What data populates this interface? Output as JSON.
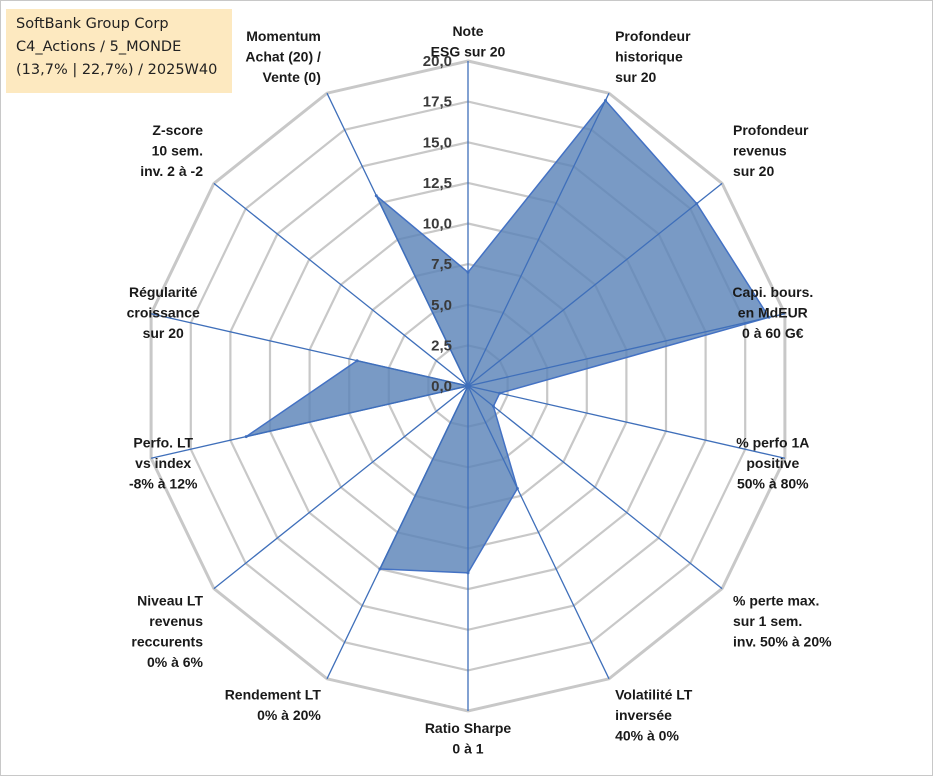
{
  "title_box": {
    "lines": [
      "SoftBank Group Corp",
      "C4_Actions / 5_MONDE",
      "(13,7% | 22,7%) / 2025W40"
    ]
  },
  "colors": {
    "grid": "#c8c8c8",
    "spoke": "#3f6fba",
    "series_fill": "#5b84b8",
    "series_stroke": "#4472c4",
    "title_box_bg": "#fde9c0"
  },
  "chart_data": {
    "type": "radar",
    "title": "",
    "rmin": 0,
    "rmax": 20,
    "tick_step": 2.5,
    "tick_labels": [
      "0,0",
      "2,5",
      "5,0",
      "7,5",
      "10,0",
      "12,5",
      "15,0",
      "17,5",
      "20,0"
    ],
    "grid": true,
    "legend": "none",
    "axes": [
      {
        "label_lines": [
          "Note",
          "ESG sur 20"
        ]
      },
      {
        "label_lines": [
          "Profondeur",
          "historique",
          "sur 20"
        ]
      },
      {
        "label_lines": [
          "Profondeur",
          "revenus",
          "sur 20"
        ]
      },
      {
        "label_lines": [
          "Capi. bours.",
          "en MdEUR",
          "0 à 60 G€"
        ]
      },
      {
        "label_lines": [
          "% perfo 1A",
          "positive",
          "50% à 80%"
        ]
      },
      {
        "label_lines": [
          "% perte max.",
          "sur 1 sem.",
          "inv. 50% à 20%"
        ]
      },
      {
        "label_lines": [
          "Volatilité LT",
          "inversée",
          "40% à 0%"
        ]
      },
      {
        "label_lines": [
          "Ratio Sharpe",
          "0 à 1"
        ]
      },
      {
        "label_lines": [
          "Rendement LT",
          "0% à 20%"
        ]
      },
      {
        "label_lines": [
          "Niveau LT",
          "revenus",
          "reccurents",
          "0% à 6%"
        ]
      },
      {
        "label_lines": [
          "Perfo. LT",
          "vs index",
          "-8% à 12%"
        ]
      },
      {
        "label_lines": [
          "Régularité",
          "croissance",
          "sur 20"
        ]
      },
      {
        "label_lines": [
          "Z-score",
          "10 sem.",
          "inv. 2 à -2"
        ]
      },
      {
        "label_lines": [
          "Momentum",
          "Achat (20) /",
          "Vente (0)"
        ]
      }
    ],
    "series": [
      {
        "values": [
          7.0,
          19.5,
          18.0,
          19.0,
          2.0,
          2.0,
          7.0,
          11.5,
          12.5,
          0.0,
          14.0,
          7.0,
          0.0,
          13.0
        ]
      }
    ]
  }
}
